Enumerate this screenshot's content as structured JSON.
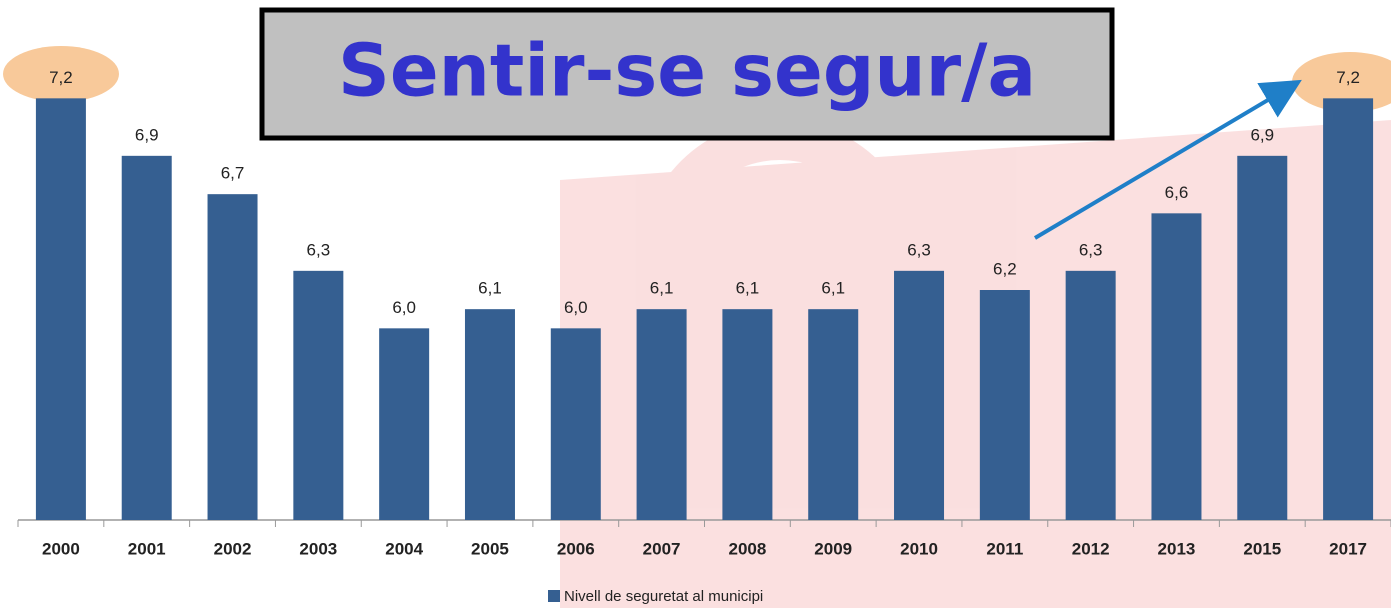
{
  "chart_data": {
    "type": "bar",
    "title": "Sentir-se segur/a",
    "categories": [
      "2000",
      "2001",
      "2002",
      "2003",
      "2004",
      "2005",
      "2006",
      "2007",
      "2008",
      "2009",
      "2010",
      "2011",
      "2012",
      "2013",
      "2015",
      "2017"
    ],
    "series": [
      {
        "name": "Nivell de seguretat al municipi",
        "color": "#355f91",
        "values": [
          7.2,
          6.9,
          6.7,
          6.3,
          6.0,
          6.1,
          6.0,
          6.1,
          6.1,
          6.1,
          6.3,
          6.2,
          6.3,
          6.6,
          6.9,
          7.2
        ],
        "value_labels": [
          "7,2",
          "6,9",
          "6,7",
          "6,3",
          "6,0",
          "6,1",
          "6,0",
          "6,1",
          "6,1",
          "6,1",
          "6,3",
          "6,2",
          "6,3",
          "6,6",
          "6,9",
          "7,2"
        ]
      }
    ],
    "ylim": [
      5,
      7.4
    ]
  }
}
